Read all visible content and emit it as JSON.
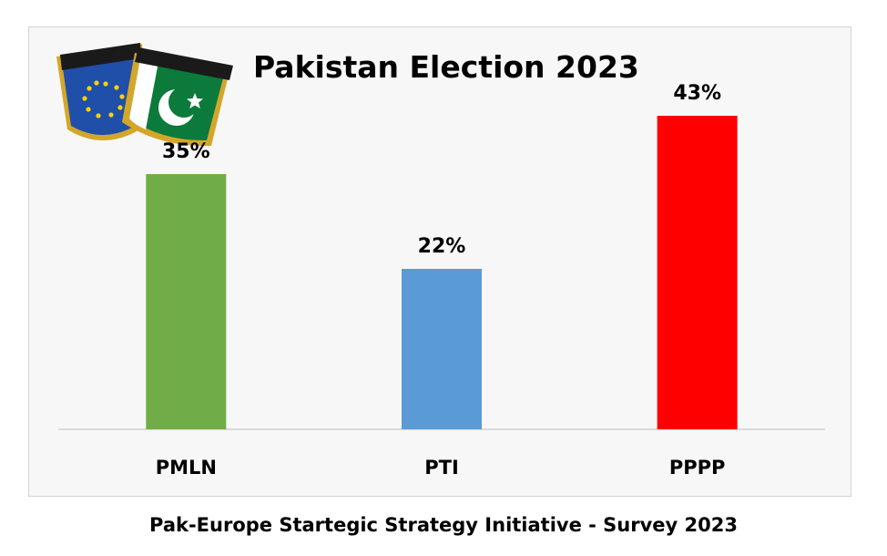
{
  "logo": {
    "left_badge_text": "EUROPE",
    "right_badge_text": "PAKISTAN",
    "colors": {
      "eu_blue": "#1f4fa8",
      "eu_star": "#f5d20a",
      "pk_green": "#0b7a3b",
      "gold": "#d4a62a"
    }
  },
  "chart_data": {
    "type": "bar",
    "title": "Pakistan Election 2023",
    "categories": [
      "PMLN",
      "PTI",
      "PPPP"
    ],
    "values": [
      35,
      22,
      43
    ],
    "value_labels": [
      "35%",
      "22%",
      "43%"
    ],
    "colors": [
      "#70ad47",
      "#5b9bd5",
      "#ff0000"
    ],
    "ylim": [
      0,
      50
    ],
    "grid": false,
    "legend": "none",
    "xlabel": "",
    "ylabel": ""
  },
  "caption": "Pak-Europe Startegic Strategy Initiative - Survey 2023"
}
